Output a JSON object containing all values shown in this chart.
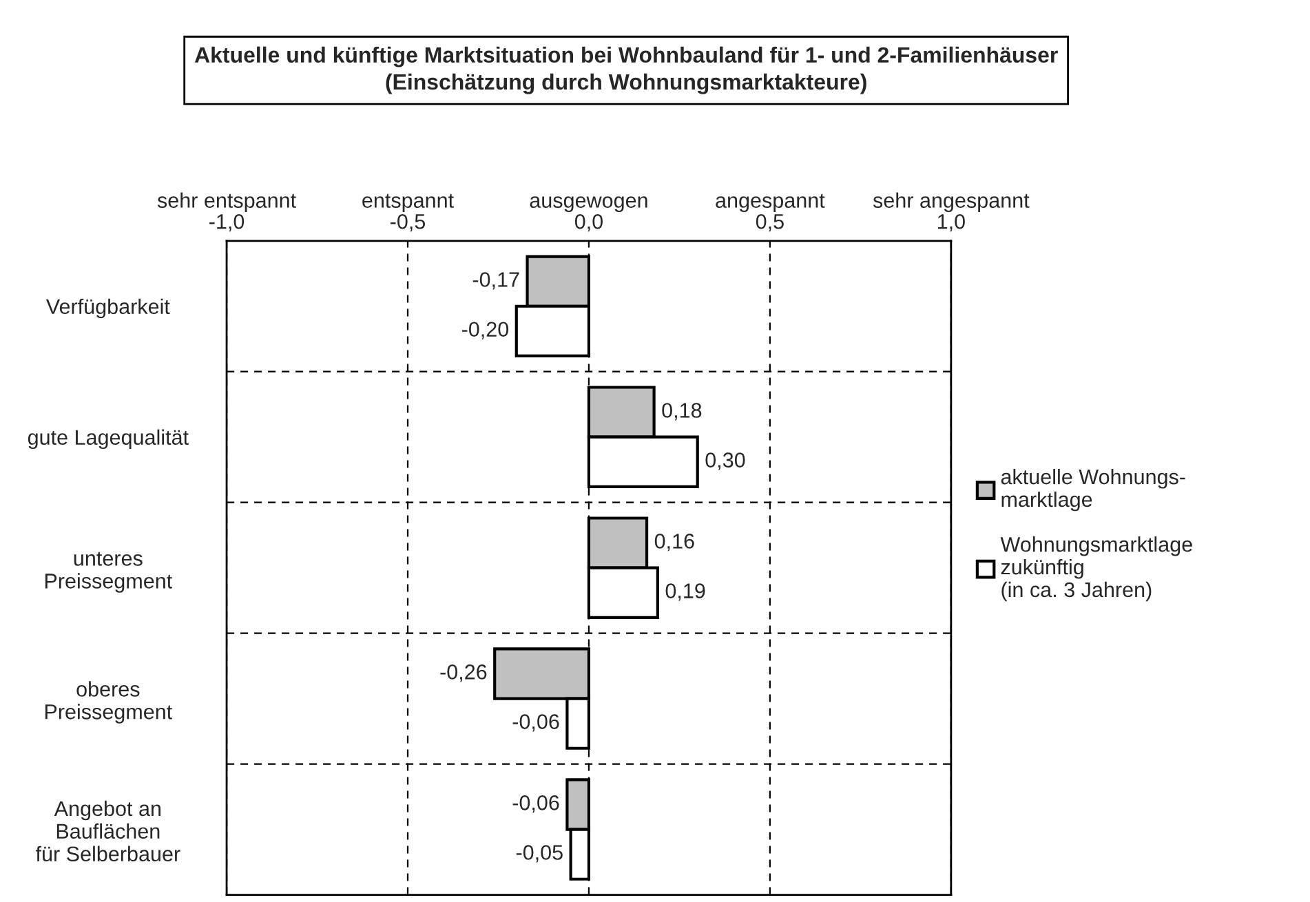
{
  "chart_data": {
    "type": "bar",
    "orientation": "horizontal",
    "title": "Aktuelle und künftige Marktsituation bei Wohnbauland für 1- und 2-Familienhäuser\n(Einschätzung durch Wohnungsmarktakteure)",
    "categories": [
      "Verfügbarkeit",
      "gute Lagequalität",
      "unteres\nPreissegment",
      "oberes\nPreissegment",
      "Angebot an\nBauflächen\nfür Selberbauer"
    ],
    "series": [
      {
        "name": "aktuelle Wohnungs-\nmarktlage",
        "color": "#c0c0c0",
        "values": [
          -0.17,
          0.18,
          0.16,
          -0.26,
          -0.06
        ],
        "value_labels": [
          "-0,17",
          "0,18",
          "0,16",
          "-0,26",
          "-0,06"
        ]
      },
      {
        "name": "Wohnungsmarktlage\nzukünftig\n(in ca. 3 Jahren)",
        "color": "#ffffff",
        "values": [
          -0.2,
          0.3,
          0.19,
          -0.06,
          -0.05
        ],
        "value_labels": [
          "-0,20",
          "0,30",
          "0,19",
          "-0,06",
          "-0,05"
        ]
      }
    ],
    "xlim": [
      -1.0,
      1.0
    ],
    "xticks": [
      {
        "value": -1.0,
        "label": "sehr entspannt\n-1,0"
      },
      {
        "value": -0.5,
        "label": "entspannt\n-0,5"
      },
      {
        "value": 0.0,
        "label": "ausgewogen\n0,0"
      },
      {
        "value": 0.5,
        "label": "angespannt\n0,5"
      },
      {
        "value": 1.0,
        "label": "sehr angespannt\n1,0"
      }
    ],
    "grid": true,
    "legend": "right"
  }
}
